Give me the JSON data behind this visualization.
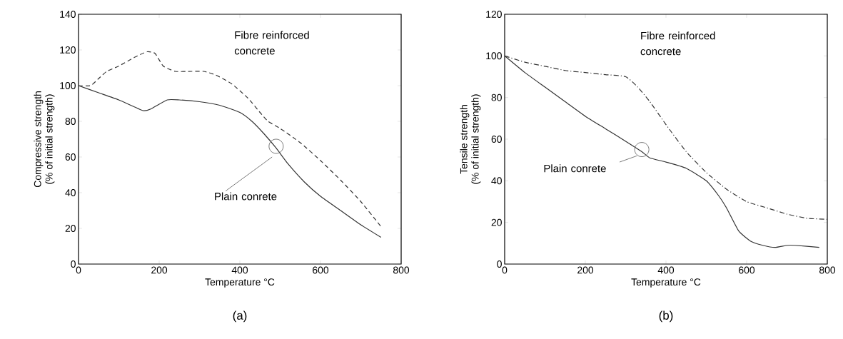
{
  "chart_data": [
    {
      "type": "line",
      "xlabel": "Temperature °C",
      "ylabel": "Compressive strength\n(% of initial strength)",
      "annotations": [
        "(a)"
      ],
      "xlim": [
        0,
        800
      ],
      "ylim": [
        0,
        140
      ],
      "xticks": [
        0,
        200,
        400,
        600,
        800
      ],
      "yticks": [
        0,
        20,
        40,
        60,
        80,
        100,
        120,
        140
      ],
      "series": [
        {
          "name": "Fibre reinforced concrete",
          "color": "#333333",
          "line_style": "dashed",
          "x": [
            0,
            30,
            50,
            70,
            100,
            140,
            170,
            190,
            210,
            240,
            280,
            310,
            340,
            380,
            420,
            450,
            470,
            500,
            550,
            600,
            650,
            700,
            750
          ],
          "values": [
            100,
            100,
            104,
            108,
            111,
            116,
            119,
            118,
            111,
            108,
            108,
            108,
            106,
            101,
            93,
            85,
            80,
            76,
            68,
            58,
            47,
            35,
            21
          ]
        },
        {
          "name": "Plain conrete",
          "color": "#333333",
          "line_style": "solid",
          "x": [
            0,
            50,
            100,
            160,
            180,
            220,
            250,
            300,
            350,
            400,
            430,
            460,
            490,
            520,
            560,
            600,
            650,
            700,
            750
          ],
          "values": [
            100,
            96,
            92,
            86,
            87,
            92,
            92,
            91,
            89,
            85,
            80,
            73,
            65,
            56,
            46,
            38,
            30,
            22,
            15
          ]
        }
      ]
    },
    {
      "type": "line",
      "xlabel": "Temperature °C",
      "ylabel": "Tensile strength\n(% of initial strength)",
      "annotations": [
        "(b)"
      ],
      "xlim": [
        0,
        800
      ],
      "ylim": [
        0,
        120
      ],
      "xticks": [
        0,
        200,
        400,
        600,
        800
      ],
      "yticks": [
        0,
        20,
        40,
        60,
        80,
        100,
        120
      ],
      "series": [
        {
          "name": "Fibre reinforced concrete",
          "color": "#333333",
          "line_style": "dashdot",
          "x": [
            0,
            50,
            100,
            150,
            200,
            250,
            300,
            330,
            360,
            400,
            450,
            500,
            550,
            600,
            650,
            700,
            750,
            800
          ],
          "values": [
            100,
            97,
            95,
            93,
            92,
            91,
            90,
            85,
            78,
            67,
            54,
            44,
            36,
            30,
            27,
            24,
            22,
            21.5
          ]
        },
        {
          "name": "Plain conrete",
          "color": "#333333",
          "line_style": "solid",
          "x": [
            0,
            50,
            100,
            150,
            200,
            250,
            300,
            340,
            360,
            400,
            450,
            500,
            530,
            550,
            580,
            610,
            640,
            670,
            700,
            720,
            780
          ],
          "values": [
            100,
            92,
            85,
            78,
            71,
            65,
            59,
            54,
            51,
            49,
            46,
            40,
            33,
            27,
            16,
            11,
            9,
            8,
            9,
            9,
            8
          ]
        }
      ]
    }
  ]
}
